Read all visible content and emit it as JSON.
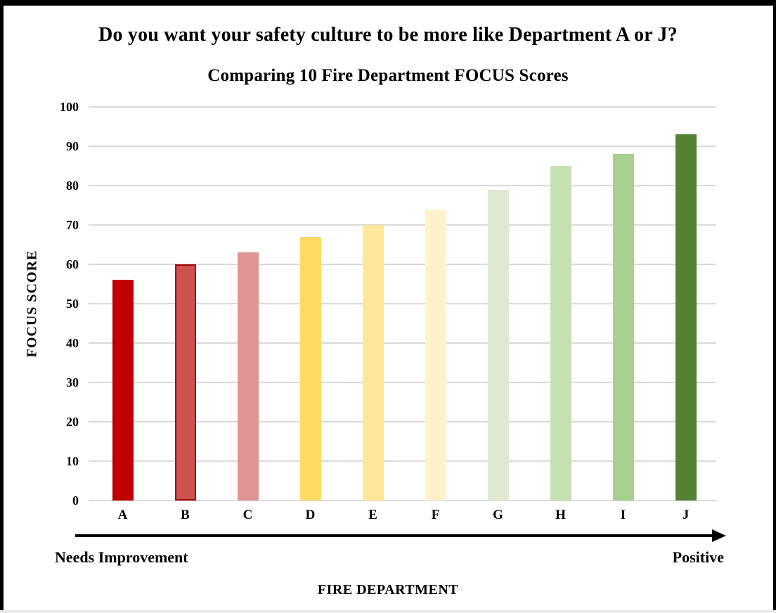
{
  "titles": {
    "question": "Do you want your safety culture to be more like Department A or J?",
    "chart": "Comparing 10 Fire Department FOCUS Scores"
  },
  "chart_data": {
    "type": "bar",
    "title": "Comparing 10 Fire Department FOCUS Scores",
    "subtitle": "Do you want your safety culture to be more like Department A or J?",
    "categories": [
      "A",
      "B",
      "C",
      "D",
      "E",
      "F",
      "G",
      "H",
      "I",
      "J"
    ],
    "values": [
      56,
      60,
      63,
      67,
      70,
      74,
      79,
      85,
      88,
      93
    ],
    "bar_colors": [
      "#C00000",
      "#CC5350",
      "#E09493",
      "#FFD966",
      "#FFE699",
      "#FFF2CC",
      "#DDEAD1",
      "#C6E0B4",
      "#A9D08E",
      "#548235"
    ],
    "bar_border_colors": [
      "",
      "#A40000",
      "",
      "",
      "",
      "",
      "",
      "",
      "",
      ""
    ],
    "xlabel": "FIRE DEPARTMENT",
    "ylabel": "FOCUS SCORE",
    "ylim": [
      0,
      100
    ],
    "yticks": [
      0,
      10,
      20,
      30,
      40,
      50,
      60,
      70,
      80,
      90,
      100
    ],
    "grid": "horizontal",
    "gridline_color": "#D9D9D9",
    "legend": "none",
    "annotations": {
      "left": "Needs Improvement",
      "right": "Positive"
    }
  },
  "frame": {
    "border_color": "#000000",
    "bottom_strip_color": "#E9E9E9"
  }
}
